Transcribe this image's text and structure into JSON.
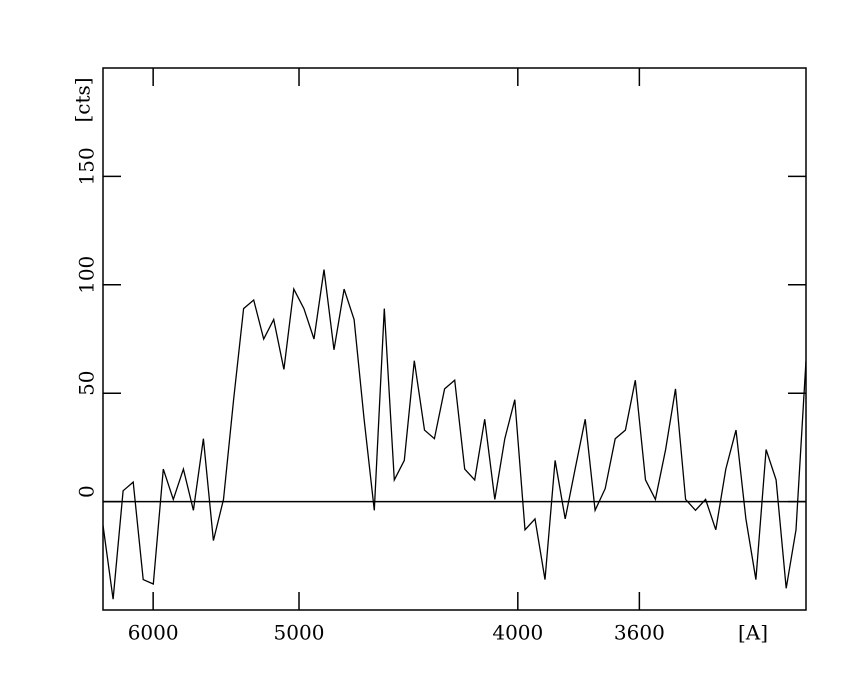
{
  "chart_data": {
    "type": "line",
    "x_label": "[A]",
    "y_label": "[cts]",
    "x": [
      6443,
      6349,
      6258,
      6169,
      6083,
      5999,
      5918,
      5839,
      5761,
      5686,
      5613,
      5542,
      5472,
      5404,
      5338,
      5273,
      5210,
      5149,
      5088,
      5030,
      4972,
      4916,
      4861,
      4808,
      4755,
      4704,
      4654,
      4604,
      4556,
      4509,
      4463,
      4418,
      4373,
      4330,
      4287,
      4245,
      4204,
      4164,
      4125,
      4086,
      4048,
      4011,
      3974,
      3938,
      3903,
      3868,
      3834,
      3801,
      3768,
      3736,
      3704,
      3673,
      3642,
      3612,
      3582,
      3553,
      3524,
      3496,
      3468,
      3441,
      3414,
      3387,
      3361,
      3335,
      3310,
      3285,
      3260,
      3236,
      3212,
      3189,
      3166
    ],
    "series": [
      {
        "name": "counts",
        "color": "#000000",
        "values": [
          -11,
          -45,
          5,
          9,
          -36,
          -38,
          15,
          1,
          15,
          -4,
          29,
          -18,
          1,
          47,
          89,
          93,
          75,
          84,
          61,
          98,
          89,
          75,
          107,
          70,
          98,
          84,
          38,
          -4,
          89,
          10,
          19,
          65,
          33,
          29,
          52,
          56,
          15,
          10,
          38,
          1,
          29,
          47,
          -13,
          -8,
          -36,
          19,
          -8,
          15,
          38,
          -4,
          6,
          29,
          33,
          56,
          10,
          1,
          24,
          52,
          1,
          -4,
          1,
          -13,
          15,
          33,
          -8,
          -36,
          24,
          10,
          -40,
          -13,
          65
        ]
      }
    ],
    "xlim": [
      6443,
      3166
    ],
    "x_scale": "reciprocal",
    "xticks": [
      6000,
      5000,
      4000,
      3600
    ],
    "ylim": [
      -50,
      200
    ],
    "yticks": [
      0,
      50,
      100,
      150
    ],
    "hline": 0
  }
}
